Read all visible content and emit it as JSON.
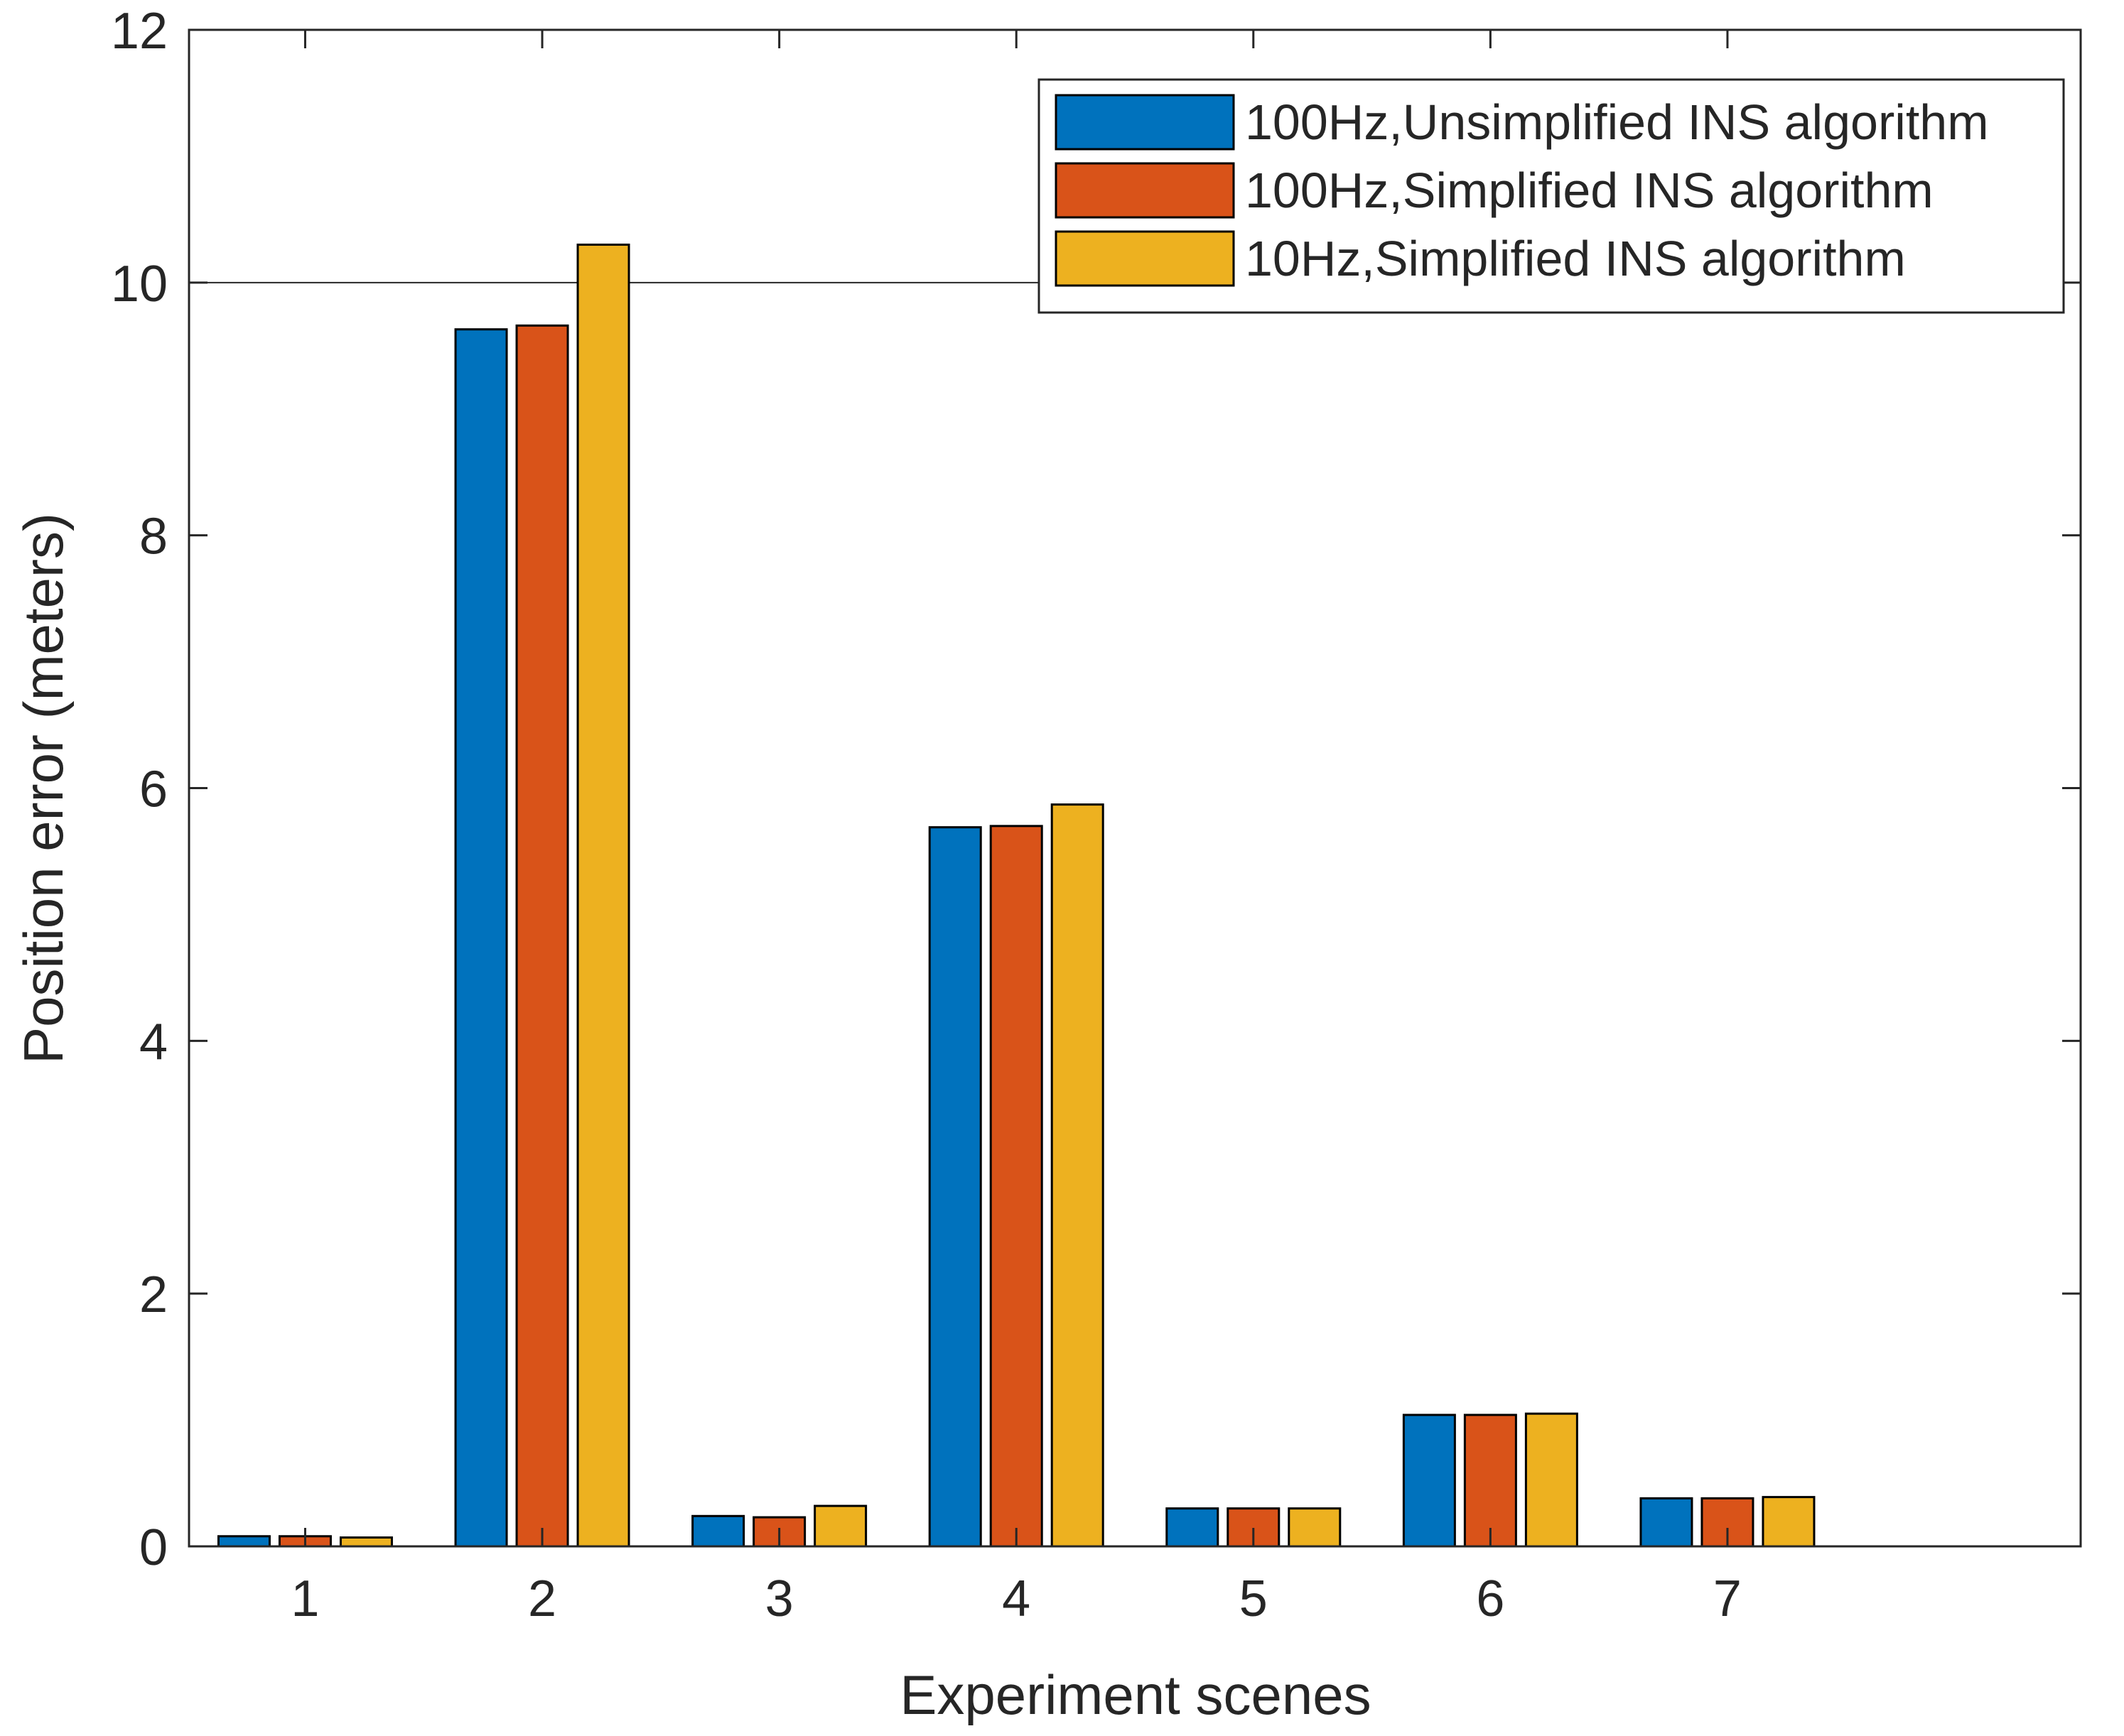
{
  "chart_data": {
    "type": "bar",
    "title": "",
    "xlabel": "Experiment scenes",
    "ylabel": "Position error (meters)",
    "categories": [
      "1",
      "2",
      "3",
      "4",
      "5",
      "6",
      "7"
    ],
    "ylim": [
      0,
      12
    ],
    "yticks": [
      0,
      2,
      4,
      6,
      8,
      10,
      12
    ],
    "reference_line": 10,
    "legend_position": "top-right",
    "series": [
      {
        "name": "100Hz,Unsimplified INS algorithm",
        "color": "#0072BD",
        "values": [
          0.08,
          9.63,
          0.24,
          5.69,
          0.3,
          1.04,
          0.38
        ]
      },
      {
        "name": "100Hz,Simplified INS algorithm",
        "color": "#D95319",
        "values": [
          0.08,
          9.66,
          0.23,
          5.7,
          0.3,
          1.04,
          0.38
        ]
      },
      {
        "name": "10Hz,Simplified INS algorithm",
        "color": "#EDB120",
        "values": [
          0.07,
          10.3,
          0.32,
          5.87,
          0.3,
          1.05,
          0.39
        ]
      }
    ]
  }
}
